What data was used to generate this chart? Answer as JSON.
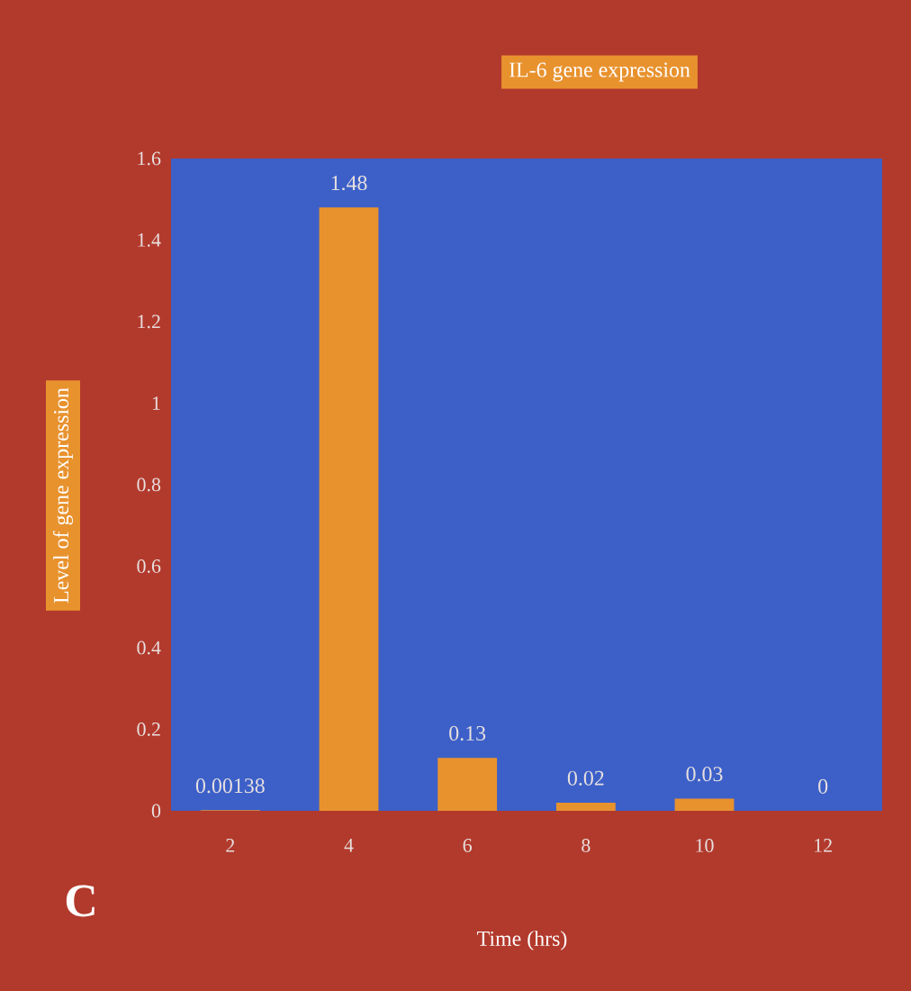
{
  "chart_data": {
    "type": "bar",
    "title": "IL-6 gene expression",
    "xlabel": "Time (hrs)",
    "ylabel": "Level of gene expression",
    "categories": [
      "2",
      "4",
      "6",
      "8",
      "10",
      "12"
    ],
    "values": [
      0.00138,
      1.48,
      0.13,
      0.02,
      0.03,
      0
    ],
    "color": "#e8922e",
    "ylim": [
      0,
      1.6
    ],
    "yticks": [
      0,
      0.2,
      0.4,
      0.6,
      0.8,
      1,
      1.2,
      1.4,
      1.6
    ],
    "data_labels": true,
    "annotations": [
      "C"
    ]
  }
}
